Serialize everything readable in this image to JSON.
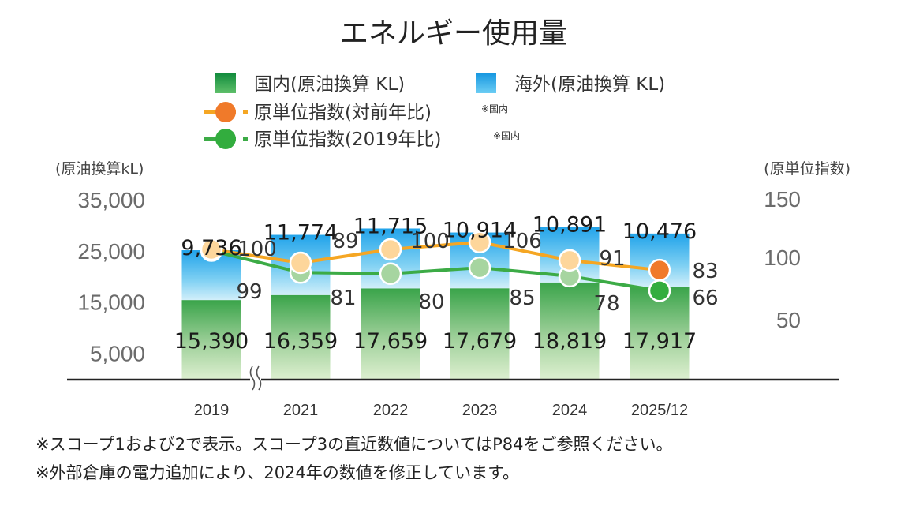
{
  "chart_data": {
    "type": "bar",
    "title": "エネルギー使用量",
    "categories": [
      "2019",
      "2021",
      "2022",
      "2023",
      "2024",
      "2025/12"
    ],
    "series": [
      {
        "name": "国内(原油換算 KL)",
        "values": [
          15390,
          16359,
          17659,
          17679,
          18819,
          17917
        ],
        "labels": [
          "15,390",
          "16,359",
          "17,659",
          "17,679",
          "18,819",
          "17,917"
        ],
        "color": "#2f9a3c"
      },
      {
        "name": "海外(原油換算 KL)",
        "values": [
          9736,
          11774,
          11715,
          10914,
          10891,
          10476
        ],
        "labels": [
          "9,736",
          "11,774",
          "11,715",
          "10,914",
          "10,891",
          "10,476"
        ],
        "color": "#27a6e6"
      }
    ],
    "line_series": [
      {
        "name": "原単位指数(対前年比)",
        "note": "※国内",
        "values": [
          100,
          89,
          100,
          106,
          91,
          83
        ],
        "color": "#f5a623",
        "marker": "#fdd69b",
        "last_marker": "#f07a2a"
      },
      {
        "name": "原単位指数(2019年比)",
        "note": "※国内",
        "values": [
          99,
          81,
          80,
          85,
          78,
          66
        ],
        "color": "#3cab46",
        "marker": "#a6d5a0",
        "last_marker": "#32ad3e"
      }
    ],
    "y_left": {
      "label": "(原油換算kL)",
      "ticks": [
        "35,000",
        "25,000",
        "15,000",
        "5,000"
      ],
      "tick_values": [
        35000,
        25000,
        15000,
        5000
      ],
      "range": [
        0,
        35000
      ]
    },
    "y_right": {
      "label": "(原単位指数)",
      "ticks": [
        "150",
        "100",
        "50"
      ],
      "tick_values": [
        150,
        100,
        50
      ],
      "range": [
        0,
        150
      ]
    },
    "axis_break_after": "2019",
    "legend_position": "top"
  },
  "footnotes": [
    "※スコープ1および2で表示。スコープ3の直近数値についてはP84をご参照ください。",
    "※外部倉庫の電力追加により、2024年の数値を修正しています。"
  ]
}
